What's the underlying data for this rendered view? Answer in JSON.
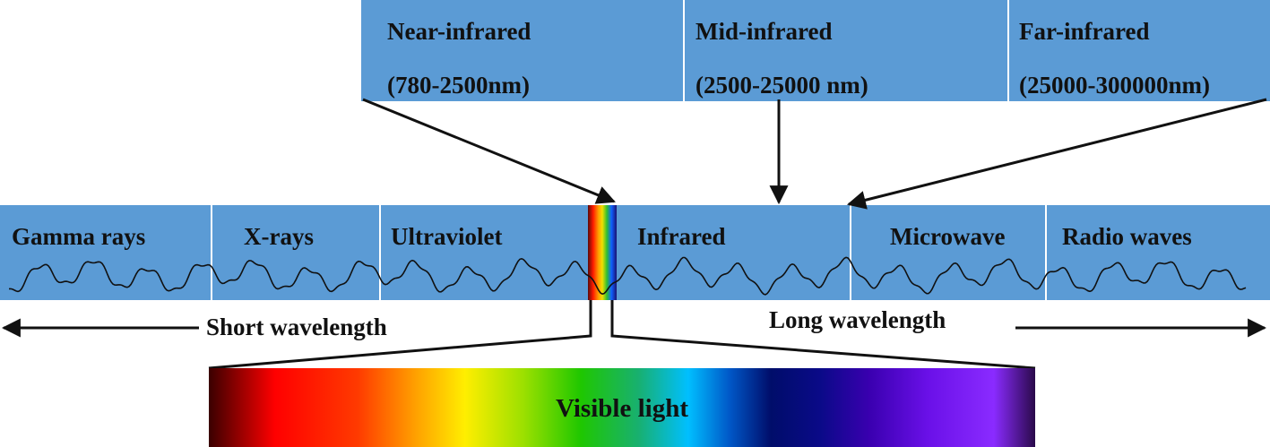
{
  "infrared_bands": [
    {
      "name": "Near-infrared",
      "range": "(780-2500nm)"
    },
    {
      "name": "Mid-infrared",
      "range": "(2500-25000 nm)"
    },
    {
      "name": "Far-infrared",
      "range": "(25000-300000nm)"
    }
  ],
  "spectrum_regions": [
    {
      "label": "Gamma rays"
    },
    {
      "label": "X-rays"
    },
    {
      "label": "Ultraviolet"
    },
    {
      "label": "Infrared"
    },
    {
      "label": "Microwave"
    },
    {
      "label": "Radio waves"
    }
  ],
  "wavelength_labels": {
    "short": "Short wavelength",
    "long": "Long wavelength"
  },
  "visible_light": {
    "label": "Visible light"
  },
  "colors": {
    "box_fill": "#5b9bd5",
    "divider": "#ffffff",
    "arrow": "#111111"
  }
}
